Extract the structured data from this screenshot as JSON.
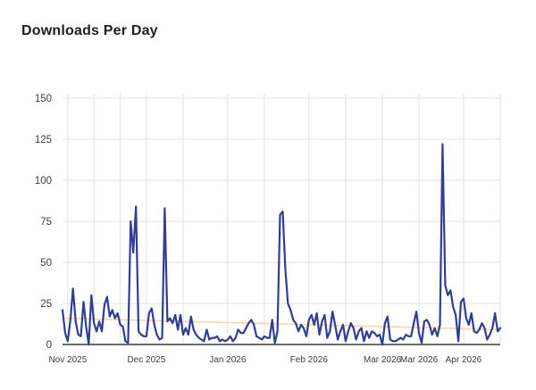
{
  "chart_data": {
    "type": "line",
    "title": "Downloads Per Day",
    "x_start_date": "2025-10-30",
    "x_end_date": "2026-04-15",
    "grid": true,
    "legend": "none",
    "colors": {
      "line": "#313d94",
      "trend": "#f8d89e",
      "grid": "#e2e2e2",
      "axis": "#6b6b6b",
      "tick_text": "#3d3d3d"
    },
    "y_axis": {
      "max": 150,
      "ticks": [
        0,
        25,
        50,
        75,
        100,
        125,
        150
      ]
    },
    "x_axis": {
      "tick_labels": [
        {
          "label": "Nov 2025",
          "day": 2
        },
        {
          "label": "Dec 2025",
          "day": 32
        },
        {
          "label": "Jan 2026",
          "day": 63
        },
        {
          "label": "Feb 2026",
          "day": 94
        },
        {
          "label": "Mar 2026",
          "day": 122
        },
        {
          "label": "Mar 2026",
          "day": 136
        },
        {
          "label": "Apr 2026",
          "day": 153
        }
      ],
      "gridline_days": [
        2,
        12,
        22,
        32,
        46,
        63,
        77,
        94,
        108,
        122,
        136,
        153,
        167
      ]
    },
    "trendline": {
      "start_value": 16,
      "end_value": 9
    },
    "series": [
      {
        "values": [
          21,
          7,
          2,
          15,
          34,
          14,
          6,
          5,
          26,
          11,
          0,
          30,
          13,
          8,
          14,
          8,
          24,
          29,
          17,
          21,
          16,
          19,
          12,
          11,
          2,
          1,
          75,
          56,
          84,
          8,
          6,
          5,
          5,
          19,
          22,
          12,
          6,
          3,
          4,
          83,
          14,
          16,
          13,
          18,
          9,
          18,
          6,
          10,
          6,
          17,
          9,
          6,
          4,
          3,
          2,
          9,
          3,
          4,
          4,
          5,
          2,
          3,
          2,
          3,
          5,
          2,
          4,
          9,
          7,
          7,
          10,
          13,
          15,
          12,
          5,
          4,
          3,
          5,
          4,
          4,
          15,
          1,
          8,
          79,
          81,
          46,
          25,
          21,
          15,
          13,
          8,
          12,
          10,
          5,
          15,
          18,
          12,
          19,
          6,
          14,
          18,
          4,
          8,
          20,
          12,
          3,
          8,
          12,
          2,
          8,
          13,
          10,
          3,
          8,
          10,
          2,
          8,
          4,
          8,
          7,
          5,
          6,
          0,
          13,
          17,
          3,
          2,
          2,
          3,
          4,
          3,
          6,
          5,
          5,
          13,
          20,
          7,
          1,
          14,
          15,
          12,
          6,
          10,
          5,
          12,
          122,
          36,
          30,
          33,
          23,
          18,
          2,
          26,
          28,
          16,
          12,
          19,
          8,
          7,
          9,
          13,
          10,
          3,
          6,
          10,
          19,
          8,
          10
        ]
      }
    ]
  }
}
